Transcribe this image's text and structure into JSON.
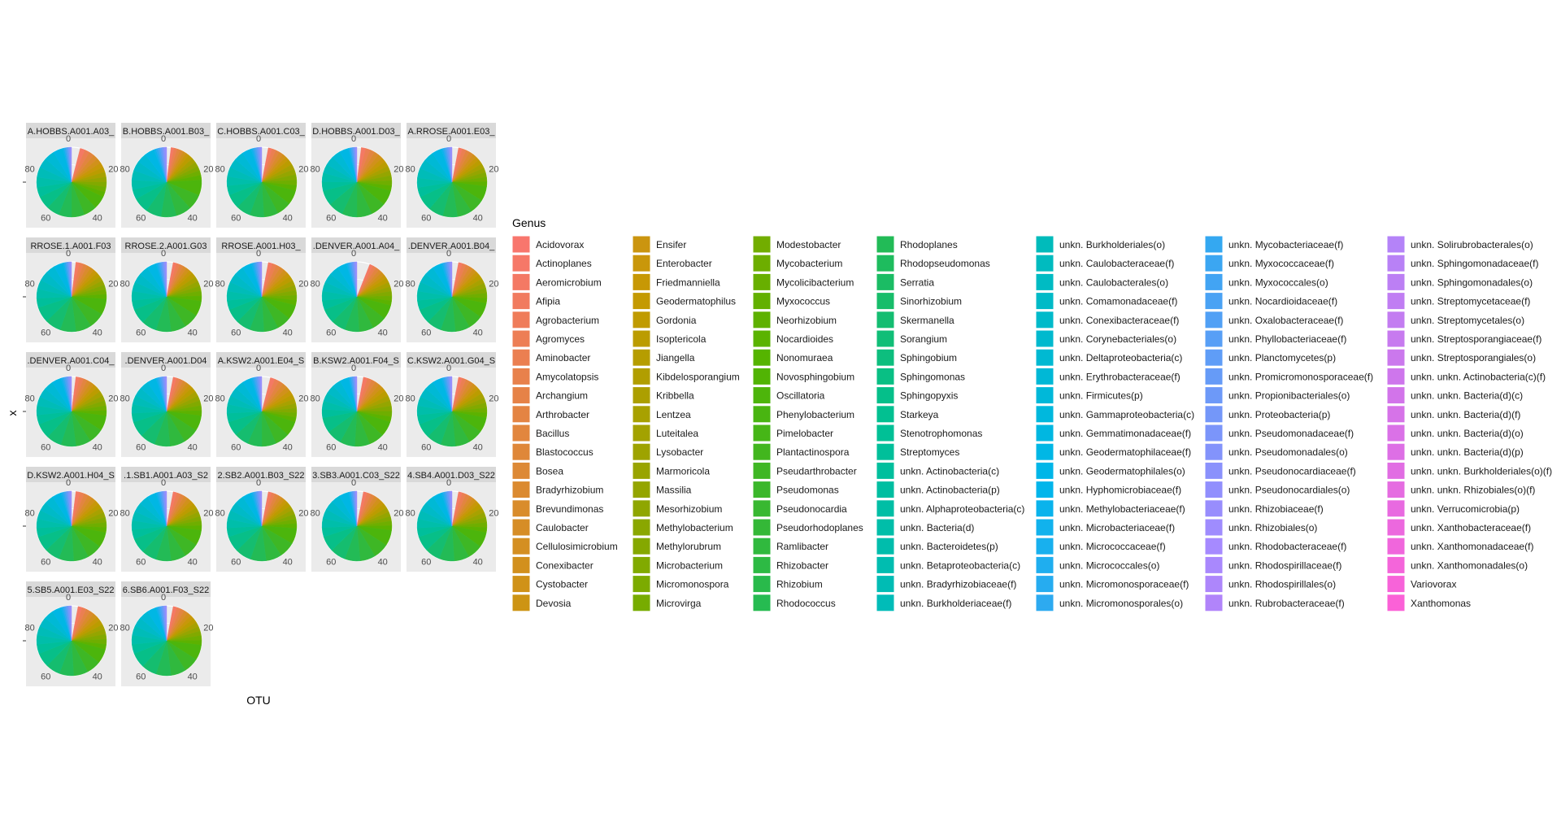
{
  "chart_data": {
    "type": "pie",
    "facet": "wrap",
    "xlabel": "OTU",
    "ylabel": "x",
    "theta_ticks": [
      "0",
      "20",
      "40",
      "60",
      "80"
    ],
    "theta_max": 100,
    "panel_labels": [
      "A.HOBBS.A001.A03_",
      "B.HOBBS.A001.B03_",
      "C.HOBBS.A001.C03_",
      "D.HOBBS.A001.D03_",
      "A.RROSE.A001.E03_",
      "RROSE.1.A001.F03",
      "RROSE.2.A001.G03",
      "RROSE.A001.H03_",
      ".DENVER.A001.A04_",
      ".DENVER.A001.B04_",
      ".DENVER.A001.C04_",
      ".DENVER.A001.D04",
      "A.KSW2.A001.E04_S",
      "B.KSW2.A001.F04_S",
      "C.KSW2.A001.G04_S",
      "D.KSW2.A001.H04_S",
      ".1.SB1.A001.A03_S2",
      "2.SB2.A001.B03_S22",
      "3.SB3.A001.C03_S22",
      "4.SB4.A001.D03_S22",
      "5.SB5.A001.E03_S22",
      "6.SB6.A001.F03_S22"
    ],
    "panel_shares": [
      [
        4,
        14,
        14,
        36,
        28,
        4
      ],
      [
        2,
        9,
        13,
        43,
        27,
        6
      ],
      [
        3,
        11,
        15,
        40,
        26,
        5
      ],
      [
        2,
        13,
        14,
        42,
        25,
        4
      ],
      [
        3,
        11,
        13,
        41,
        27,
        5
      ],
      [
        2,
        11,
        13,
        44,
        26,
        4
      ],
      [
        3,
        10,
        14,
        42,
        26,
        5
      ],
      [
        3,
        12,
        14,
        40,
        26,
        5
      ],
      [
        6,
        10,
        13,
        40,
        26,
        5
      ],
      [
        3,
        11,
        14,
        41,
        26,
        5
      ],
      [
        2,
        11,
        14,
        42,
        26,
        5
      ],
      [
        3,
        10,
        14,
        43,
        25,
        5
      ],
      [
        4,
        13,
        13,
        40,
        25,
        5
      ],
      [
        3,
        12,
        15,
        42,
        24,
        4
      ],
      [
        3,
        11,
        14,
        41,
        26,
        5
      ],
      [
        2,
        12,
        14,
        42,
        25,
        5
      ],
      [
        3,
        11,
        13,
        42,
        26,
        5
      ],
      [
        3,
        10,
        13,
        44,
        25,
        5
      ],
      [
        3,
        11,
        13,
        43,
        26,
        4
      ],
      [
        3,
        11,
        14,
        42,
        25,
        5
      ],
      [
        3,
        12,
        14,
        40,
        26,
        5
      ],
      [
        3,
        11,
        13,
        42,
        26,
        5
      ]
    ],
    "legend_title": "Genus",
    "legend_placement": "right",
    "legend_columns": [
      [
        "Acidovorax",
        "Actinoplanes",
        "Aeromicrobium",
        "Afipia",
        "Agrobacterium",
        "Agromyces",
        "Aminobacter",
        "Amycolatopsis",
        "Archangium",
        "Arthrobacter",
        "Bacillus",
        "Blastococcus",
        "Bosea",
        "Bradyrhizobium",
        "Brevundimonas",
        "Caulobacter",
        "Cellulosimicrobium",
        "Conexibacter",
        "Cystobacter",
        "Devosia"
      ],
      [
        "Ensifer",
        "Enterobacter",
        "Friedmanniella",
        "Geodermatophilus",
        "Gordonia",
        "Isoptericola",
        "Jiangella",
        "Kibdelosporangium",
        "Kribbella",
        "Lentzea",
        "Luteitalea",
        "Lysobacter",
        "Marmoricola",
        "Massilia",
        "Mesorhizobium",
        "Methylobacterium",
        "Methylorubrum",
        "Microbacterium",
        "Micromonospora",
        "Microvirga"
      ],
      [
        "Modestobacter",
        "Mycobacterium",
        "Mycolicibacterium",
        "Myxococcus",
        "Neorhizobium",
        "Nocardioides",
        "Nonomuraea",
        "Novosphingobium",
        "Oscillatoria",
        "Phenylobacterium",
        "Pimelobacter",
        "Plantactinospora",
        "Pseudarthrobacter",
        "Pseudomonas",
        "Pseudonocardia",
        "Pseudorhodoplanes",
        "Ramlibacter",
        "Rhizobacter",
        "Rhizobium",
        "Rhodococcus"
      ],
      [
        "Rhodoplanes",
        "Rhodopseudomonas",
        "Serratia",
        "Sinorhizobium",
        "Skermanella",
        "Sorangium",
        "Sphingobium",
        "Sphingomonas",
        "Sphingopyxis",
        "Starkeya",
        "Stenotrophomonas",
        "Streptomyces",
        "unkn. Actinobacteria(c)",
        "unkn. Actinobacteria(p)",
        "unkn. Alphaproteobacteria(c)",
        "unkn. Bacteria(d)",
        "unkn. Bacteroidetes(p)",
        "unkn. Betaproteobacteria(c)",
        "unkn. Bradyrhizobiaceae(f)",
        "unkn. Burkholderiaceae(f)"
      ],
      [
        "unkn. Burkholderiales(o)",
        "unkn. Caulobacteraceae(f)",
        "unkn. Caulobacterales(o)",
        "unkn. Comamonadaceae(f)",
        "unkn. Conexibacteraceae(f)",
        "unkn. Corynebacteriales(o)",
        "unkn. Deltaproteobacteria(c)",
        "unkn. Erythrobacteraceae(f)",
        "unkn. Firmicutes(p)",
        "unkn. Gammaproteobacteria(c)",
        "unkn. Gemmatimonadaceae(f)",
        "unkn. Geodermatophilaceae(f)",
        "unkn. Geodermatophilales(o)",
        "unkn. Hyphomicrobiaceae(f)",
        "unkn. Methylobacteriaceae(f)",
        "unkn. Microbacteriaceae(f)",
        "unkn. Micrococcaceae(f)",
        "unkn. Micrococcales(o)",
        "unkn. Micromonosporaceae(f)",
        "unkn. Micromonosporales(o)"
      ],
      [
        "unkn. Mycobacteriaceae(f)",
        "unkn. Myxococcaceae(f)",
        "unkn. Myxococcales(o)",
        "unkn. Nocardioidaceae(f)",
        "unkn. Oxalobacteraceae(f)",
        "unkn. Phyllobacteriaceae(f)",
        "unkn. Planctomycetes(p)",
        "unkn. Promicromonosporaceae(f)",
        "unkn. Propionibacteriales(o)",
        "unkn. Proteobacteria(p)",
        "unkn. Pseudomonadaceae(f)",
        "unkn. Pseudomonadales(o)",
        "unkn. Pseudonocardiaceae(f)",
        "unkn. Pseudonocardiales(o)",
        "unkn. Rhizobiaceae(f)",
        "unkn. Rhizobiales(o)",
        "unkn. Rhodobacteraceae(f)",
        "unkn. Rhodospirillaceae(f)",
        "unkn. Rhodospirillales(o)",
        "unkn. Rubrobacteraceae(f)"
      ],
      [
        "unkn. Solirubrobacterales(o)",
        "unkn. Sphingomonadaceae(f)",
        "unkn. Sphingomonadales(o)",
        "unkn. Streptomycetaceae(f)",
        "unkn. Streptomycetales(o)",
        "unkn. Streptosporangiaceae(f)",
        "unkn. Streptosporangiales(o)",
        "unkn. unkn. Actinobacteria(c)(f)",
        "unkn. unkn. Bacteria(d)(c)",
        "unkn. unkn. Bacteria(d)(f)",
        "unkn. unkn. Bacteria(d)(o)",
        "unkn. unkn. Bacteria(d)(p)",
        "unkn. unkn. Burkholderiales(o)(f)",
        "unkn. unkn. Rhizobiales(o)(f)",
        "unkn. Verrucomicrobia(p)",
        "unkn. Xanthobacteraceae(f)",
        "unkn. Xanthomonadaceae(f)",
        "unkn. Xanthomonadales(o)",
        "Variovorax",
        "Xanthomonas"
      ]
    ],
    "colors": {
      "panel_background": "#ebebeb",
      "strip_background": "#d9d9d9",
      "grid": "#ffffff",
      "wedge_stops": [
        "#f8766d",
        "#c49a00",
        "#53b400",
        "#00c094",
        "#00b6eb",
        "#a58aff",
        "#fb61d7"
      ]
    }
  }
}
